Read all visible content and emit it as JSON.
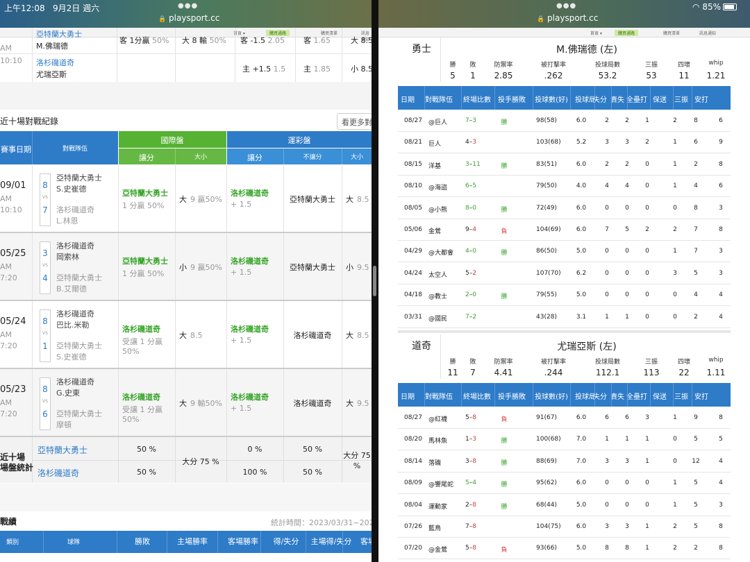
{
  "left": {
    "status": {
      "time": "上午12:08",
      "date": "9月2日 週六"
    },
    "url": "playsport.cc",
    "subnav": {
      "item1": "首頁 ▾",
      "item2": "購買通路",
      "item3": "購買清單",
      "item4": "訊息通知"
    },
    "top_rows": [
      {
        "team": "亞特蘭大勇士",
        "pitcher": "M.佛瑞德",
        "time1": "AM",
        "time2": "10:10",
        "c1": "客 1分贏",
        "c1b": "50%",
        "c2": "大 8 輸",
        "c2b": "50%",
        "c3": "客 -1.5",
        "c3b": "2.05",
        "c4": "客",
        "c4b": "1.65",
        "c5": "大 8.5"
      },
      {
        "team": "洛杉磯道奇",
        "pitcher": "尤瑞亞斯",
        "c3": "主 +1.5",
        "c3b": "1.5",
        "c4": "主",
        "c4b": "1.85",
        "c5": "小 8.5"
      }
    ],
    "section_title": "近十場對戰紀錄",
    "more_btn": "看更多對",
    "head": {
      "date": "賽事日期",
      "opp": "對戰隊伍",
      "intl": "國際盤",
      "lot": "運彩盤",
      "spread": "讓分",
      "ou": "大小",
      "spread2": "讓分",
      "nospread": "不讓分",
      "ou2": "大小"
    },
    "games": [
      {
        "date": "09/01",
        "ampm": "AM",
        "time": "10:10",
        "s1": "8",
        "s2": "7",
        "t1": "亞特蘭大勇士",
        "p1": "S.史崔德",
        "t2": "洛杉磯道奇",
        "p2": "L.林恩",
        "isp_team": "亞特蘭大勇士",
        "isp_res": "1 分贏 50%",
        "iou_a": "大",
        "iou_b": "9  贏50%",
        "lsp_team": "洛杉磯道奇",
        "lsp_line": "+ 1.5",
        "lns": "亞特蘭大勇士",
        "lou_a": "大",
        "lou_b": "8.5"
      },
      {
        "date": "05/25",
        "ampm": "AM",
        "time": "7:20",
        "s1": "3",
        "s2": "4",
        "t1": "洛杉磯道奇",
        "p1": "岡索林",
        "t2": "亞特蘭大勇士",
        "p2": "B.艾爾德",
        "isp_team": "亞特蘭大勇士",
        "isp_res": "1 分贏 50%",
        "iou_a": "小",
        "iou_b": "9  贏50%",
        "lsp_team": "洛杉磯道奇",
        "lsp_line": "+ 1.5",
        "lns": "亞特蘭大勇士",
        "lou_a": "小",
        "lou_b": "9.5"
      },
      {
        "date": "05/24",
        "ampm": "AM",
        "time": "7:20",
        "s1": "8",
        "s2": "1",
        "t1": "洛杉磯道奇",
        "p1": "巴比.米勒",
        "t2": "亞特蘭大勇士",
        "p2": "S.史崔德",
        "isp_team": "洛杉磯道奇",
        "isp_res": "受讓 1 分贏",
        "isp_res2": "50%",
        "iou_a": "大",
        "iou_b": "8.5",
        "lsp_team": "洛杉磯道奇",
        "lsp_line": "+ 1.5",
        "lns": "洛杉磯道奇",
        "lou_a": "大",
        "lou_b": "8.5"
      },
      {
        "date": "05/23",
        "ampm": "AM",
        "time": "7:20",
        "s1": "8",
        "s2": "6",
        "t1": "洛杉磯道奇",
        "p1": "G.史東",
        "t2": "亞特蘭大勇士",
        "p2": "摩頓",
        "isp_team": "洛杉磯道奇",
        "isp_res": "受讓 1 分贏",
        "isp_res2": "50%",
        "iou_a": "大",
        "iou_b": "9  輸50%",
        "lsp_team": "洛杉磯道奇",
        "lsp_line": "+ 1.5",
        "lns": "洛杉磯道奇",
        "lou_a": "大",
        "lou_b": "9.5"
      }
    ],
    "summary": {
      "label1": "近十場",
      "label2": "場盤統計",
      "team1": "亞特蘭大勇士",
      "team2": "洛杉磯道奇",
      "a1": "50 %",
      "a2": "50 %",
      "ou": "大分 75 %",
      "b1": "0 %",
      "b2": "100 %",
      "c1": "50 %",
      "c2": "50 %",
      "d": "大分 75",
      "d2": "%"
    },
    "record_title": "戰績",
    "record_time": "統計時間：2023/03/31~202",
    "record_head": [
      "類別",
      "球隊",
      "勝敗",
      "主場勝率",
      "客場勝率",
      "得/失分",
      "主場得/失分",
      "客場"
    ]
  },
  "right": {
    "status": {
      "wifi": "85%"
    },
    "url": "playsport.cc",
    "subnav": {
      "item1": "首頁 ▾",
      "item2": "購買通路",
      "item3": "購買清單",
      "item4": "訊息通知"
    },
    "pitchers": [
      {
        "team": "勇士",
        "name": "M.佛瑞德 (左)",
        "labels": [
          "勝",
          "敗",
          "防禦率",
          "被打擊率",
          "投球局數",
          "三振",
          "四壞",
          "whip"
        ],
        "values": [
          "5",
          "1",
          "2.85",
          ".262",
          "53.2",
          "53",
          "11",
          "1.21"
        ],
        "rows": [
          [
            "08/27",
            "@巨人",
            "7",
            "–",
            "3",
            "g",
            "勝",
            "98(58)",
            "6.0",
            "2",
            "2",
            "1",
            "2",
            "8",
            "6"
          ],
          [
            "08/21",
            "巨人",
            "4",
            "–",
            "3",
            "r",
            "",
            "103(68)",
            "5.2",
            "3",
            "3",
            "2",
            "1",
            "6",
            "9"
          ],
          [
            "08/15",
            "洋基",
            "3",
            "–",
            "11",
            "g",
            "勝",
            "83(51)",
            "6.0",
            "2",
            "2",
            "0",
            "1",
            "2",
            "8"
          ],
          [
            "08/10",
            "@海盜",
            "6",
            "–",
            "5",
            "g",
            "",
            "79(50)",
            "4.0",
            "4",
            "4",
            "0",
            "1",
            "4",
            "6"
          ],
          [
            "08/05",
            "@小熊",
            "8",
            "–",
            "0",
            "g",
            "勝",
            "72(49)",
            "6.0",
            "0",
            "0",
            "0",
            "0",
            "8",
            "3"
          ],
          [
            "05/06",
            "金鶯",
            "9",
            "–",
            "4",
            "r",
            "負",
            "104(69)",
            "6.0",
            "7",
            "5",
            "2",
            "2",
            "7",
            "8"
          ],
          [
            "04/29",
            "@大都會",
            "4",
            "–",
            "0",
            "g",
            "勝",
            "86(50)",
            "5.0",
            "0",
            "0",
            "0",
            "1",
            "7",
            "3"
          ],
          [
            "04/24",
            "太空人",
            "5",
            "–",
            "2",
            "r",
            "",
            "107(70)",
            "6.2",
            "0",
            "0",
            "0",
            "3",
            "5",
            "3"
          ],
          [
            "04/18",
            "@教士",
            "2",
            "–",
            "0",
            "g",
            "勝",
            "79(55)",
            "5.0",
            "0",
            "0",
            "0",
            "0",
            "4",
            "4"
          ],
          [
            "03/31",
            "@國民",
            "7",
            "–",
            "2",
            "g",
            "",
            "43(28)",
            "3.1",
            "1",
            "1",
            "0",
            "0",
            "2",
            "4"
          ]
        ]
      },
      {
        "team": "道奇",
        "name": "尤瑞亞斯 (左)",
        "labels": [
          "勝",
          "敗",
          "防禦率",
          "被打擊率",
          "投球局數",
          "三振",
          "四壞",
          "whip"
        ],
        "values": [
          "11",
          "7",
          "4.41",
          ".244",
          "112.1",
          "113",
          "22",
          "1.11"
        ],
        "rows": [
          [
            "08/27",
            "@紅襪",
            "5",
            "–",
            "8",
            "r",
            "負",
            "91(67)",
            "6.0",
            "6",
            "6",
            "3",
            "1",
            "9",
            "8"
          ],
          [
            "08/20",
            "馬林魚",
            "1",
            "–",
            "3",
            "r",
            "勝",
            "100(68)",
            "7.0",
            "1",
            "1",
            "1",
            "0",
            "5",
            "5"
          ],
          [
            "08/14",
            "落磯",
            "3",
            "–",
            "8",
            "r",
            "勝",
            "88(69)",
            "7.0",
            "3",
            "3",
            "1",
            "0",
            "12",
            "4"
          ],
          [
            "08/09",
            "@響尾蛇",
            "5",
            "–",
            "4",
            "g",
            "勝",
            "95(62)",
            "6.0",
            "0",
            "0",
            "0",
            "1",
            "5",
            "4"
          ],
          [
            "08/04",
            "運動家",
            "2",
            "–",
            "8",
            "r",
            "勝",
            "68(44)",
            "5.0",
            "0",
            "0",
            "0",
            "1",
            "5",
            "3"
          ],
          [
            "07/26",
            "藍鳥",
            "7",
            "–",
            "8",
            "r",
            "",
            "104(75)",
            "6.0",
            "3",
            "3",
            "1",
            "2",
            "5",
            "8"
          ],
          [
            "07/20",
            "@金鶯",
            "5",
            "–",
            "8",
            "r",
            "負",
            "93(66)",
            "5.0",
            "8",
            "8",
            "1",
            "2",
            "2",
            "8"
          ]
        ]
      }
    ],
    "table_head": [
      "日期",
      "對戰隊伍",
      "終場比數",
      "投手勝敗",
      "投球數(好)",
      "投球局",
      "失分",
      "責失",
      "全壘打",
      "保送",
      "三振",
      "安打"
    ]
  }
}
